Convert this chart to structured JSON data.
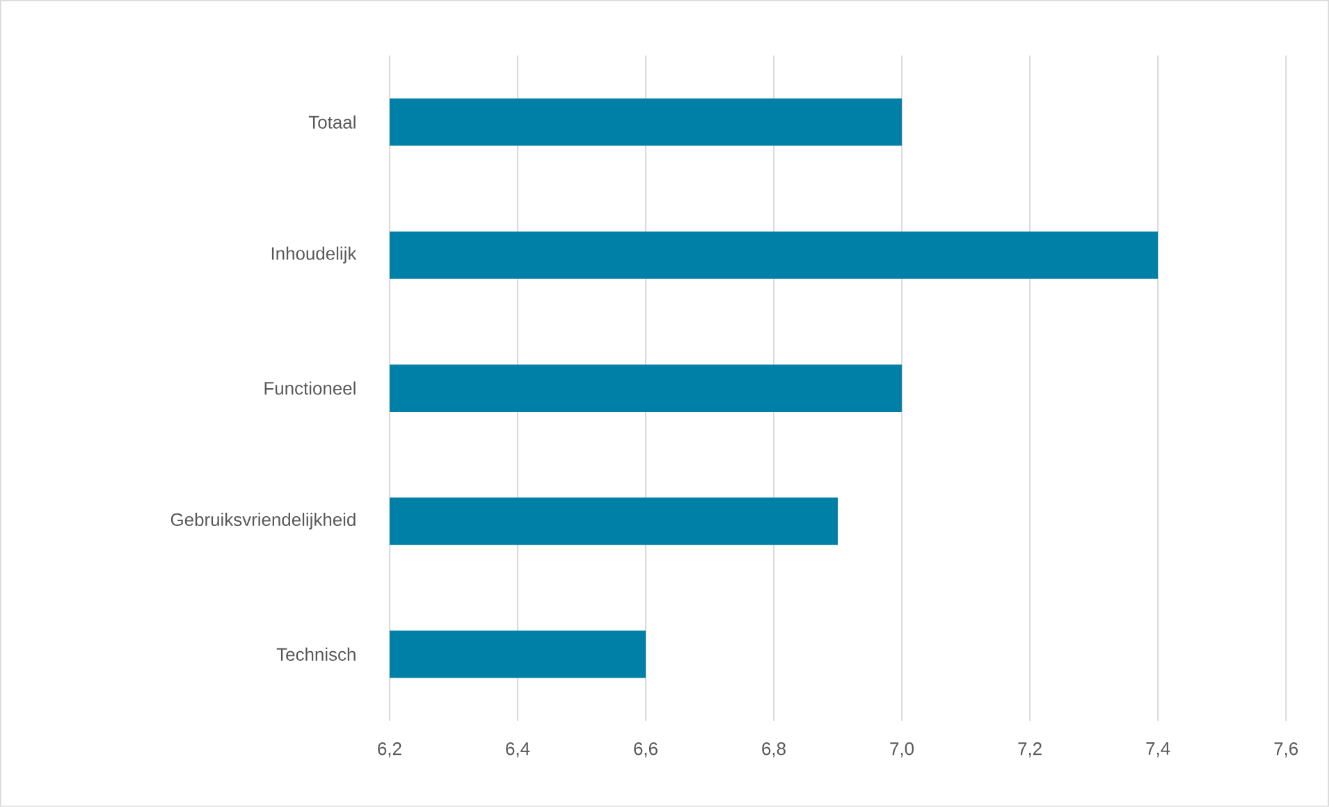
{
  "chart_data": {
    "type": "bar",
    "orientation": "horizontal",
    "categories": [
      "Totaal",
      "Inhoudelijk",
      "Functioneel",
      "Gebruiksvriendelijkheid",
      "Technisch"
    ],
    "values": [
      7.0,
      7.4,
      7.0,
      6.9,
      6.6
    ],
    "color": "#0080a6",
    "xlim": [
      6.2,
      7.6
    ],
    "xticks": [
      {
        "value": 6.2,
        "label": "6,2"
      },
      {
        "value": 6.4,
        "label": "6,4"
      },
      {
        "value": 6.6,
        "label": "6,6"
      },
      {
        "value": 6.8,
        "label": "6,8"
      },
      {
        "value": 7.0,
        "label": "7,0"
      },
      {
        "value": 7.2,
        "label": "7,2"
      },
      {
        "value": 7.4,
        "label": "7,4"
      },
      {
        "value": 7.6,
        "label": "7,6"
      }
    ],
    "grid": "x"
  }
}
